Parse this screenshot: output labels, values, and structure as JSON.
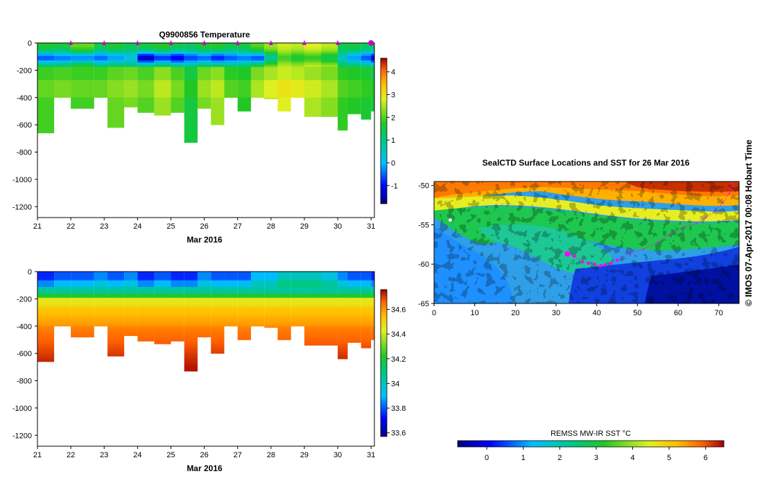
{
  "chart_data": [
    {
      "type": "heatmap",
      "title": "Q9900856  Temperature",
      "xlabel": "Mar 2016",
      "ylabel": "",
      "x_ticks": [
        "21",
        "22",
        "23",
        "24",
        "25",
        "26",
        "27",
        "28",
        "29",
        "30",
        "31"
      ],
      "xlim": [
        21,
        31.1
      ],
      "y_ticks": [
        "0",
        "-200",
        "-400",
        "-600",
        "-800",
        "-1000",
        "-1200"
      ],
      "ylim": [
        -1280,
        0
      ],
      "colorbar": {
        "ticks": [
          "-1",
          "0",
          "1",
          "2",
          "3",
          "4"
        ],
        "range": [
          -1.8,
          4.6
        ]
      },
      "profile_markers": [
        "22",
        "23",
        "24",
        "25",
        "26",
        "27",
        "28",
        "29",
        "30",
        "31"
      ],
      "profiles": [
        {
          "t": 21.0,
          "max_depth": 660,
          "surface": 1.6,
          "min_temp": -0.6,
          "deep_temp": 1.9
        },
        {
          "t": 21.5,
          "max_depth": 400,
          "surface": 1.5,
          "min_temp": -0.4,
          "deep_temp": 2.0
        },
        {
          "t": 22.0,
          "max_depth": 480,
          "surface": 2.1,
          "min_temp": -0.3,
          "deep_temp": 1.9
        },
        {
          "t": 22.7,
          "max_depth": 400,
          "surface": 1.4,
          "min_temp": -0.5,
          "deep_temp": 1.9
        },
        {
          "t": 23.1,
          "max_depth": 620,
          "surface": 1.6,
          "min_temp": -0.2,
          "deep_temp": 2.1
        },
        {
          "t": 23.6,
          "max_depth": 470,
          "surface": 1.3,
          "min_temp": 0.2,
          "deep_temp": 2.2
        },
        {
          "t": 24.0,
          "max_depth": 510,
          "surface": 1.5,
          "min_temp": -1.4,
          "deep_temp": 2.0
        },
        {
          "t": 24.5,
          "max_depth": 530,
          "surface": 1.7,
          "min_temp": -0.8,
          "deep_temp": 2.4
        },
        {
          "t": 25.0,
          "max_depth": 510,
          "surface": 1.4,
          "min_temp": -1.2,
          "deep_temp": 2.0
        },
        {
          "t": 25.4,
          "max_depth": 730,
          "surface": 1.3,
          "min_temp": -0.7,
          "deep_temp": 1.5
        },
        {
          "t": 25.8,
          "max_depth": 480,
          "surface": 1.6,
          "min_temp": -0.5,
          "deep_temp": 2.2
        },
        {
          "t": 26.2,
          "max_depth": 600,
          "surface": 1.7,
          "min_temp": -0.9,
          "deep_temp": 2.4
        },
        {
          "t": 26.6,
          "max_depth": 400,
          "surface": 1.4,
          "min_temp": -0.6,
          "deep_temp": 1.8
        },
        {
          "t": 27.0,
          "max_depth": 500,
          "surface": 1.5,
          "min_temp": -0.4,
          "deep_temp": 1.7
        },
        {
          "t": 27.4,
          "max_depth": 400,
          "surface": 2.0,
          "min_temp": -0.6,
          "deep_temp": 2.3
        },
        {
          "t": 27.8,
          "max_depth": 410,
          "surface": 2.4,
          "min_temp": 0.8,
          "deep_temp": 2.6
        },
        {
          "t": 28.2,
          "max_depth": 500,
          "surface": 2.7,
          "min_temp": 1.9,
          "deep_temp": 2.8
        },
        {
          "t": 28.6,
          "max_depth": 400,
          "surface": 2.6,
          "min_temp": 1.6,
          "deep_temp": 2.7
        },
        {
          "t": 29.0,
          "max_depth": 540,
          "surface": 2.8,
          "min_temp": 1.8,
          "deep_temp": 2.5
        },
        {
          "t": 29.5,
          "max_depth": 540,
          "surface": 2.6,
          "min_temp": 1.4,
          "deep_temp": 2.3
        },
        {
          "t": 30.0,
          "max_depth": 640,
          "surface": 1.4,
          "min_temp": 0.5,
          "deep_temp": 1.8
        },
        {
          "t": 30.3,
          "max_depth": 520,
          "surface": 1.5,
          "min_temp": -0.2,
          "deep_temp": 1.7
        },
        {
          "t": 30.7,
          "max_depth": 560,
          "surface": 1.3,
          "min_temp": -0.6,
          "deep_temp": 1.6
        },
        {
          "t": 31.0,
          "max_depth": 500,
          "surface": 1.2,
          "min_temp": -1.3,
          "deep_temp": 1.5
        }
      ]
    },
    {
      "type": "heatmap",
      "title": "",
      "xlabel": "Mar 2016",
      "ylabel": "",
      "x_ticks": [
        "21",
        "22",
        "23",
        "24",
        "25",
        "26",
        "27",
        "28",
        "29",
        "30",
        "31"
      ],
      "xlim": [
        21,
        31.1
      ],
      "y_ticks": [
        "0",
        "-200",
        "-400",
        "-600",
        "-800",
        "-1000",
        "-1200"
      ],
      "ylim": [
        -1280,
        0
      ],
      "colorbar": {
        "ticks": [
          "33.6",
          "33.8",
          "34",
          "34.2",
          "34.4",
          "34.6"
        ],
        "range": [
          33.57,
          34.76
        ]
      },
      "profiles_salinity": [
        {
          "t": 21.0,
          "max_depth": 660,
          "surface": 33.75
        },
        {
          "t": 21.5,
          "max_depth": 400,
          "surface": 33.8
        },
        {
          "t": 22.0,
          "max_depth": 480,
          "surface": 33.8
        },
        {
          "t": 22.7,
          "max_depth": 400,
          "surface": 33.85
        },
        {
          "t": 23.1,
          "max_depth": 620,
          "surface": 33.8
        },
        {
          "t": 23.6,
          "max_depth": 470,
          "surface": 33.85
        },
        {
          "t": 24.0,
          "max_depth": 510,
          "surface": 33.75
        },
        {
          "t": 24.5,
          "max_depth": 530,
          "surface": 33.8
        },
        {
          "t": 25.0,
          "max_depth": 510,
          "surface": 33.75
        },
        {
          "t": 25.4,
          "max_depth": 730,
          "surface": 33.75
        },
        {
          "t": 25.8,
          "max_depth": 480,
          "surface": 33.85
        },
        {
          "t": 26.2,
          "max_depth": 600,
          "surface": 33.8
        },
        {
          "t": 26.6,
          "max_depth": 400,
          "surface": 33.8
        },
        {
          "t": 27.0,
          "max_depth": 500,
          "surface": 33.8
        },
        {
          "t": 27.4,
          "max_depth": 400,
          "surface": 33.9
        },
        {
          "t": 27.8,
          "max_depth": 410,
          "surface": 33.9
        },
        {
          "t": 28.2,
          "max_depth": 500,
          "surface": 34.0
        },
        {
          "t": 28.6,
          "max_depth": 400,
          "surface": 34.0
        },
        {
          "t": 29.0,
          "max_depth": 540,
          "surface": 34.0
        },
        {
          "t": 29.5,
          "max_depth": 540,
          "surface": 33.95
        },
        {
          "t": 30.0,
          "max_depth": 640,
          "surface": 33.85
        },
        {
          "t": 30.3,
          "max_depth": 520,
          "surface": 33.8
        },
        {
          "t": 30.7,
          "max_depth": 560,
          "surface": 33.8
        },
        {
          "t": 31.0,
          "max_depth": 500,
          "surface": 33.75
        }
      ]
    },
    {
      "type": "heatmap",
      "title": "SealCTD Surface Locations and SST for 26 Mar 2016",
      "xlabel": "",
      "ylabel": "",
      "x_ticks": [
        "0",
        "10",
        "20",
        "30",
        "40",
        "50",
        "60",
        "70"
      ],
      "xlim": [
        0,
        75
      ],
      "y_ticks": [
        "-50",
        "-55",
        "-60",
        "-65"
      ],
      "ylim": [
        -65,
        -49.5
      ],
      "colorbar": {
        "label": "REMSS MW-IR SST °C",
        "ticks": [
          "0",
          "1",
          "2",
          "3",
          "4",
          "5",
          "6"
        ],
        "range": [
          -0.8,
          6.5
        ]
      },
      "track_points": [
        {
          "lon": 73.5,
          "lat": -49.7
        },
        {
          "lon": 72.6,
          "lat": -51.0
        },
        {
          "lon": 71.0,
          "lat": -52.2
        },
        {
          "lon": 69.0,
          "lat": -53.3
        },
        {
          "lon": 66.8,
          "lat": -54.1
        },
        {
          "lon": 64.5,
          "lat": -54.8
        },
        {
          "lon": 61.5,
          "lat": -55.3
        },
        {
          "lon": 58.0,
          "lat": -56.2
        },
        {
          "lon": 55.0,
          "lat": -57.2
        },
        {
          "lon": 51.5,
          "lat": -58.1
        },
        {
          "lon": 48.5,
          "lat": -58.6
        },
        {
          "lon": 45.0,
          "lat": -59.5
        },
        {
          "lon": 43.5,
          "lat": -59.9
        },
        {
          "lon": 42.0,
          "lat": -60.1
        },
        {
          "lon": 41.0,
          "lat": -60.2
        },
        {
          "lon": 39.5,
          "lat": -60.0
        },
        {
          "lon": 38.0,
          "lat": -59.9
        },
        {
          "lon": 36.5,
          "lat": -59.7
        },
        {
          "lon": 34.5,
          "lat": -59.0
        },
        {
          "lon": 32.8,
          "lat": -58.7
        }
      ],
      "white_marker": {
        "lon": 4.0,
        "lat": -54.4
      }
    }
  ],
  "colors": {
    "track": "#ff00ff",
    "marker": "#cc00cc"
  },
  "side_caption": "© IMOS 07-Apr-2017 00:08 Hobart Time"
}
